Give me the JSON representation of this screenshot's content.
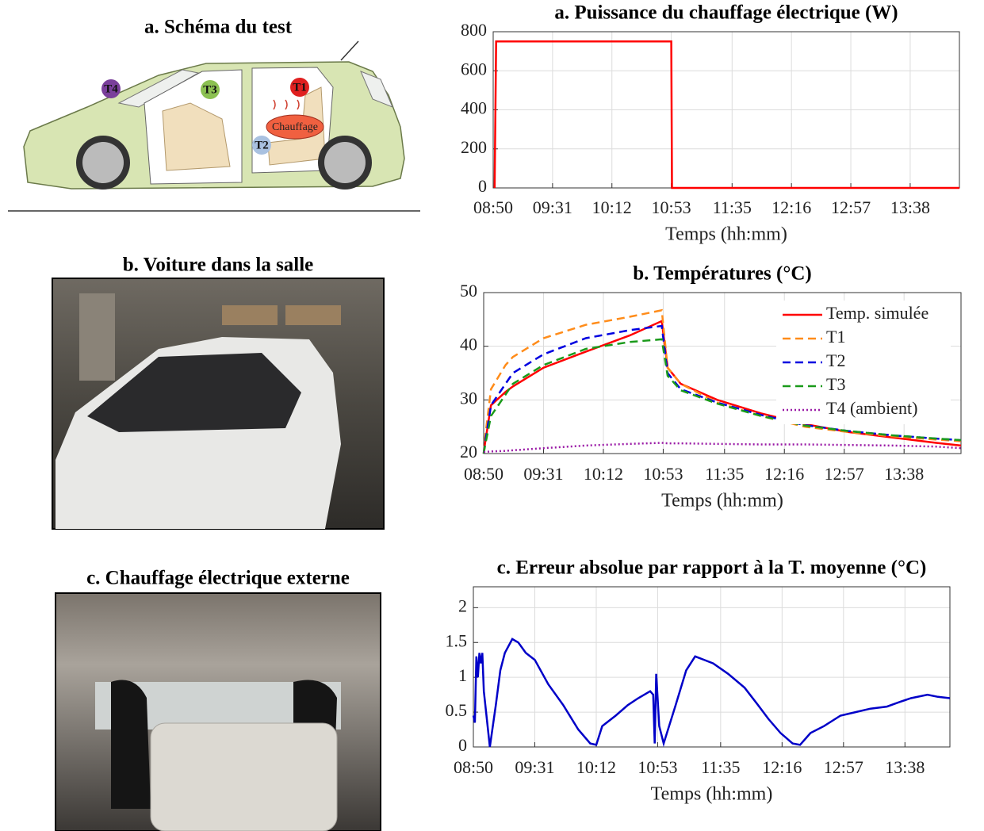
{
  "panels": [
    {
      "title": "a. Schéma du test"
    },
    {
      "title": "b. Voiture dans la salle"
    },
    {
      "title": "c. Chauffage électrique externe"
    }
  ],
  "diagram": {
    "labels": [
      "T4",
      "T3",
      "T1",
      "T2",
      "Chauffage"
    ]
  },
  "chart_data": [
    {
      "type": "line",
      "title": "a. Puissance du chauffage électrique (W)",
      "x_label": "Temps (hh:mm)",
      "x": [
        531,
        532,
        653,
        653.5,
        852
      ],
      "values": [
        0,
        750,
        750,
        0,
        0
      ],
      "color": "#ff0000",
      "xlim": [
        530,
        852
      ],
      "ylim": [
        0,
        800
      ],
      "yticks": [
        0,
        200,
        400,
        600,
        800
      ],
      "xticks": [
        {
          "value": 530,
          "label": "08:50"
        },
        {
          "value": 571,
          "label": "09:31"
        },
        {
          "value": 612,
          "label": "10:12"
        },
        {
          "value": 653,
          "label": "10:53"
        },
        {
          "value": 695,
          "label": "11:35"
        },
        {
          "value": 736,
          "label": "12:16"
        },
        {
          "value": 777,
          "label": "12:57"
        },
        {
          "value": 818,
          "label": "13:38"
        }
      ],
      "grid": true
    },
    {
      "type": "line",
      "title": "b. Températures (°C)",
      "x_label": "Temps (hh:mm)",
      "x": [
        530,
        531,
        535,
        545,
        550,
        571,
        600,
        630,
        652,
        656,
        665,
        690,
        720,
        750,
        780,
        810,
        840,
        857
      ],
      "series": [
        {
          "name": "Temp. simulée",
          "color": "#ff0000",
          "style": "solid",
          "values": [
            20,
            22,
            29,
            31.5,
            32.5,
            36,
            39,
            42,
            44.7,
            36,
            33,
            30,
            27.5,
            25.5,
            24,
            23,
            22,
            21.5
          ]
        },
        {
          "name": "T1",
          "color": "#ff8c1a",
          "style": "dashed",
          "values": [
            20,
            23,
            32,
            36.5,
            38,
            41.5,
            44,
            45.5,
            46.7,
            36,
            33,
            29.5,
            27,
            25,
            24,
            23.2,
            22.6,
            22.3
          ]
        },
        {
          "name": "T2",
          "color": "#0000e0",
          "style": "dashed",
          "values": [
            20,
            22,
            29,
            33,
            35,
            38.5,
            41.5,
            43,
            43.8,
            35,
            32,
            29.5,
            27.2,
            25.3,
            24.2,
            23.4,
            22.8,
            22.5
          ]
        },
        {
          "name": "T3",
          "color": "#1a9a1a",
          "style": "dashed",
          "values": [
            20,
            21.5,
            27,
            31,
            33,
            36.5,
            39.5,
            40.8,
            41.3,
            34.5,
            31.8,
            29.3,
            27,
            25.2,
            24.2,
            23.4,
            22.8,
            22.5
          ]
        },
        {
          "name": "T4 (ambient)",
          "color": "#9a1aa6",
          "style": "dotted",
          "values": [
            20.3,
            20.3,
            20.4,
            20.5,
            20.6,
            21,
            21.5,
            21.8,
            22,
            21.9,
            21.9,
            21.8,
            21.7,
            21.7,
            21.6,
            21.5,
            21.3,
            21
          ]
        }
      ],
      "xlim": [
        530,
        857
      ],
      "ylim": [
        20,
        50
      ],
      "yticks": [
        20,
        30,
        40,
        50
      ],
      "xticks": [
        {
          "value": 530,
          "label": "08:50"
        },
        {
          "value": 571,
          "label": "09:31"
        },
        {
          "value": 612,
          "label": "10:12"
        },
        {
          "value": 653,
          "label": "10:53"
        },
        {
          "value": 695,
          "label": "11:35"
        },
        {
          "value": 736,
          "label": "12:16"
        },
        {
          "value": 777,
          "label": "12:57"
        },
        {
          "value": 818,
          "label": "13:38"
        }
      ],
      "grid": true,
      "legend": "upper right"
    },
    {
      "type": "line",
      "title": "c. Erreur absolue par rapport à la T. moyenne (°C)",
      "x_label": "Temps (hh:mm)",
      "x": [
        530,
        531,
        532,
        533,
        534,
        535,
        536,
        537,
        541,
        545,
        548,
        551,
        556,
        560,
        565,
        571,
        580,
        590,
        600,
        608,
        612,
        616,
        625,
        633,
        640,
        648,
        650,
        651,
        652,
        654,
        657,
        665,
        672,
        678,
        690,
        700,
        711,
        720,
        727,
        735,
        743,
        748,
        755,
        764,
        775,
        785,
        795,
        806,
        815,
        822,
        833,
        840,
        848
      ],
      "values": [
        0.45,
        0.35,
        1.3,
        1.0,
        1.35,
        1.2,
        1.35,
        0.8,
        0,
        0.6,
        1.1,
        1.35,
        1.55,
        1.5,
        1.35,
        1.25,
        0.9,
        0.6,
        0.25,
        0.05,
        0.03,
        0.3,
        0.45,
        0.6,
        0.7,
        0.8,
        0.75,
        0.05,
        1.05,
        0.3,
        0.05,
        0.6,
        1.1,
        1.3,
        1.2,
        1.05,
        0.85,
        0.6,
        0.4,
        0.2,
        0.05,
        0.03,
        0.2,
        0.3,
        0.45,
        0.5,
        0.55,
        0.58,
        0.65,
        0.7,
        0.75,
        0.72,
        0.7
      ],
      "color": "#0000c8",
      "xlim": [
        530,
        848
      ],
      "ylim": [
        0,
        2.3
      ],
      "yticks": [
        0,
        0.5,
        1,
        1.5,
        2
      ],
      "xticks": [
        {
          "value": 530,
          "label": "08:50"
        },
        {
          "value": 571,
          "label": "09:31"
        },
        {
          "value": 612,
          "label": "10:12"
        },
        {
          "value": 653,
          "label": "10:53"
        },
        {
          "value": 695,
          "label": "11:35"
        },
        {
          "value": 736,
          "label": "12:16"
        },
        {
          "value": 777,
          "label": "12:57"
        },
        {
          "value": 818,
          "label": "13:38"
        }
      ],
      "grid": true
    }
  ]
}
